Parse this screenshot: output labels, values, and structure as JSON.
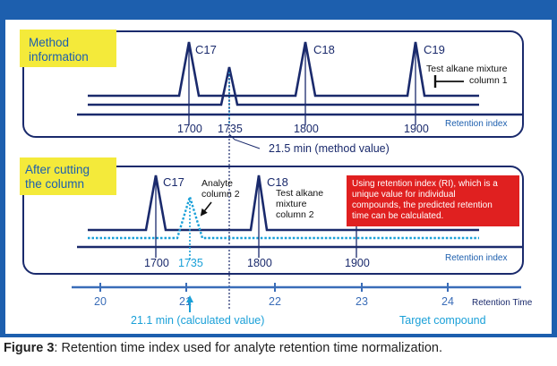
{
  "colors": {
    "frame_blue": "#1d5fae",
    "dark_navy": "#1a2a6c",
    "mid_blue": "#3a6db8",
    "cyan": "#1aa0d8",
    "label_yellow": "#f4ea3a",
    "red_box": "#e02020"
  },
  "panel_top": {
    "label_lines": [
      "Method",
      "information"
    ],
    "peaks": [
      {
        "name": "C17",
        "ri": 1700
      },
      {
        "name": "C18",
        "ri": 1800
      },
      {
        "name": "C19",
        "ri": 1900
      }
    ],
    "analyte_ri_label": "1735",
    "alkane_note_lines": [
      "Test alkane mixture",
      "column 1"
    ],
    "ri_ticks": [
      "1700",
      "1735",
      "1800",
      "1900"
    ],
    "axis_label": "Retention index",
    "method_value": "21.5 min (method value)"
  },
  "panel_bottom": {
    "label_lines": [
      "After cutting",
      "the column"
    ],
    "peaks": [
      {
        "name": "C17",
        "ri": 1700
      },
      {
        "name": "C18",
        "ri": 1800
      }
    ],
    "analyte_label_lines": [
      "Analyte",
      "column 2"
    ],
    "alkane_note_lines": [
      "Test alkane",
      "mixture",
      "column 2"
    ],
    "red_note_lines": [
      "Using retention index (RI), which is a",
      "unique value for individual",
      "compounds, the predicted retention",
      "time can be calculated."
    ],
    "ri_ticks": [
      "1700",
      "1735",
      "1800",
      "1900"
    ],
    "axis_label": "Retention index"
  },
  "time_axis": {
    "ticks": [
      "20",
      "21",
      "22",
      "23",
      "24"
    ],
    "label": "Retention Time",
    "calculated_value": "21.1 min (calculated value)",
    "target_label": "Target compound"
  },
  "caption": {
    "bold": "Figure 3",
    "text": ": Retention time index used for analyte retention time normalization."
  }
}
